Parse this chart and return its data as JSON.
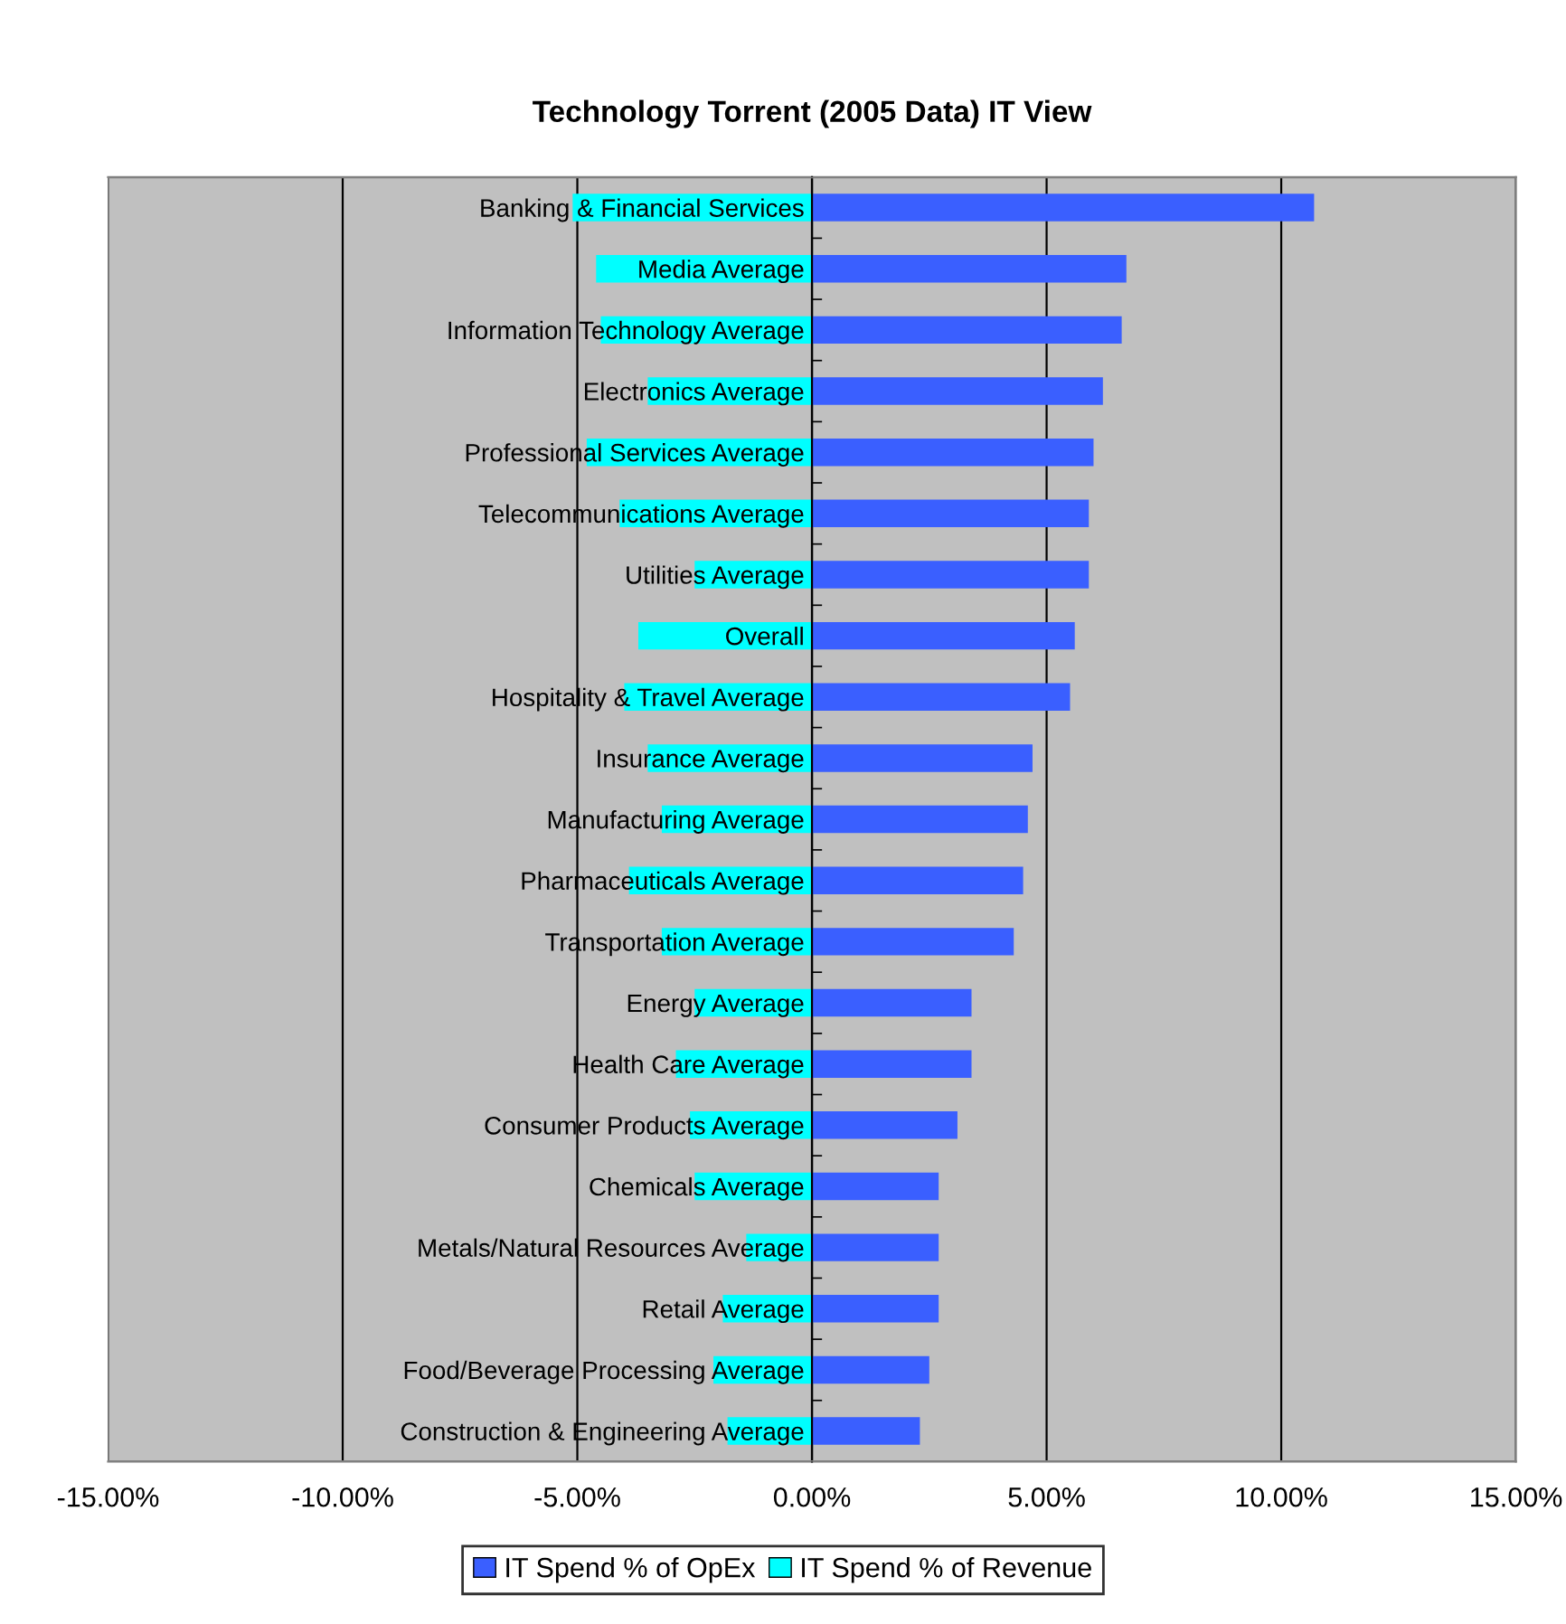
{
  "chart_data": {
    "type": "bar",
    "orientation": "horizontal",
    "title": "Technology Torrent (2005 Data) IT View",
    "categories": [
      "Banking & Financial Services",
      "Media Average",
      "Information Technology Average",
      "Electronics Average",
      "Professional Services Average",
      "Telecommunications Average",
      "Utilities Average",
      "Overall",
      "Hospitality & Travel Average",
      "Insurance Average",
      "Manufacturing Average",
      "Pharmaceuticals Average",
      "Transportation Average",
      "Energy Average",
      "Health Care Average",
      "Consumer Products Average",
      "Chemicals Average",
      "Metals/Natural Resources Average",
      "Retail Average",
      "Food/Beverage Processing Average",
      "Construction & Engineering Average"
    ],
    "series": [
      {
        "name": "IT Spend % of OpEx",
        "color": "#3a5fff",
        "values": [
          10.7,
          6.7,
          6.6,
          6.2,
          6.0,
          5.9,
          5.9,
          5.6,
          5.5,
          4.7,
          4.6,
          4.5,
          4.3,
          3.4,
          3.4,
          3.1,
          2.7,
          2.7,
          2.7,
          2.5,
          2.3
        ]
      },
      {
        "name": "IT Spend % of Revenue",
        "color": "#00ffff",
        "values": [
          -5.1,
          -4.6,
          -4.5,
          -3.5,
          -4.8,
          -4.1,
          -2.5,
          -3.7,
          -4.0,
          -3.5,
          -3.2,
          -3.9,
          -3.2,
          -2.5,
          -2.9,
          -2.6,
          -2.5,
          -1.4,
          -1.9,
          -2.1,
          -1.8
        ]
      }
    ],
    "xlim": [
      -15,
      15
    ],
    "xticks": [
      {
        "value": -15,
        "label": "-15.00%"
      },
      {
        "value": -10,
        "label": "-10.00%"
      },
      {
        "value": -5,
        "label": "-5.00%"
      },
      {
        "value": 0,
        "label": "0.00%"
      },
      {
        "value": 5,
        "label": "5.00%"
      },
      {
        "value": 10,
        "label": "10.00%"
      },
      {
        "value": 15,
        "label": "15.00%"
      }
    ],
    "grid": "x",
    "legend": "bottom",
    "stacked": true
  }
}
